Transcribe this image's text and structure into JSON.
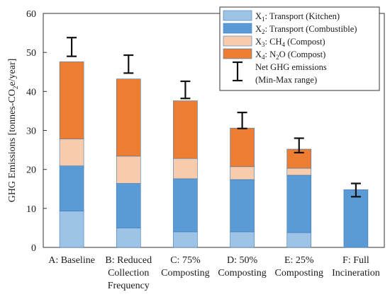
{
  "chart_data": {
    "type": "bar",
    "stacked": true,
    "title": "",
    "ylabel": "GHG Emissions [tonnes-CO₂e/year]",
    "ylabel_parts": {
      "pre": "GHG Emissions [tonnes-CO",
      "sub": "2",
      "post": "e/year]"
    },
    "ylim": [
      0,
      60
    ],
    "yticks": [
      0,
      10,
      20,
      30,
      40,
      50,
      60
    ],
    "grid": false,
    "legend_position": "top-right",
    "categories": [
      {
        "lines": [
          "A: Baseline"
        ]
      },
      {
        "lines": [
          "B: Reduced",
          "Collection",
          "Frequency"
        ]
      },
      {
        "lines": [
          "C: 75%",
          "Composting"
        ]
      },
      {
        "lines": [
          "D: 50%",
          "Composting"
        ]
      },
      {
        "lines": [
          "E: 25%",
          "Composting"
        ]
      },
      {
        "lines": [
          "F: Full",
          "Incineration"
        ]
      }
    ],
    "series": [
      {
        "name": "X1: Transport (Kitchen)",
        "label": {
          "pre": "X",
          "sub": "1",
          "post": ": Transport (Kitchen)"
        },
        "color": "#9dc3e6",
        "values": [
          9.3,
          5.0,
          4.0,
          4.0,
          3.8,
          0
        ]
      },
      {
        "name": "X2: Transport (Combustible)",
        "label": {
          "pre": "X",
          "sub": "2",
          "post": ": Transport (Combustible)"
        },
        "color": "#5b9bd5",
        "values": [
          11.6,
          11.4,
          13.6,
          13.4,
          14.7,
          14.8
        ]
      },
      {
        "name": "X3: CH4 (Compost)",
        "label": {
          "pre": "X",
          "sub": "3",
          "post": ": CH",
          "sub2": "4",
          "post2": " (Compost)"
        },
        "color": "#f8cbad",
        "values": [
          6.9,
          7.0,
          5.2,
          3.3,
          1.8,
          0
        ]
      },
      {
        "name": "X4: N2O (Compost)",
        "label": {
          "pre": "X",
          "sub": "4",
          "post": ": N",
          "sub2": "2",
          "post2": "O (Compost)"
        },
        "color": "#ed7d31",
        "values": [
          19.8,
          19.8,
          14.8,
          9.9,
          4.9,
          0
        ]
      }
    ],
    "error_range": {
      "name": "Net GHG emissions (Min-Max range)",
      "label_lines": [
        "Net GHG emissions",
        "(Min-Max range)"
      ],
      "min": [
        49.0,
        44.7,
        38.2,
        30.5,
        24.3,
        13.0
      ],
      "max": [
        53.8,
        49.3,
        42.6,
        34.6,
        28.0,
        16.4
      ]
    }
  }
}
